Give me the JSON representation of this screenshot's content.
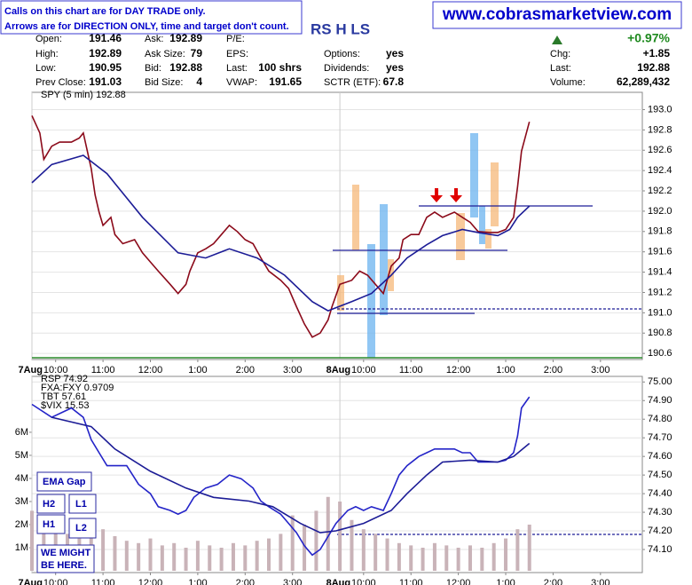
{
  "header": {
    "notes": [
      "Calls on this chart are for DAY TRADE only.",
      "Arrows are for DIRECTION ONLY, time and target don't count."
    ],
    "site": "www.cobrasmarketview.com",
    "symbol": "RS H LS",
    "change_pct": "+0.97%",
    "quote": [
      [
        {
          "label": "Open:",
          "value": "191.46"
        },
        {
          "label": "High:",
          "value": "192.89"
        },
        {
          "label": "Low:",
          "value": "190.95"
        },
        {
          "label": "Prev Close:",
          "value": "191.03"
        }
      ],
      [
        {
          "label": "Ask:",
          "value": "192.89"
        },
        {
          "label": "Ask Size:",
          "value": "79"
        },
        {
          "label": "Bid:",
          "value": "192.88"
        },
        {
          "label": "Bid Size:",
          "value": "4"
        }
      ],
      [
        {
          "label": "P/E:"
        },
        {
          "label": "EPS:"
        },
        {
          "label": "Last:",
          "value": "100 shrs"
        },
        {
          "label": "VWAP:",
          "value": "191.65"
        }
      ],
      [
        {
          "label": "Options:",
          "value": "yes"
        },
        {
          "label": "Dividends:",
          "value": "yes"
        },
        {
          "label": "SCTR (ETF):",
          "value": "67.8"
        }
      ],
      [
        {
          "label": "Chg:",
          "value": "+1.85"
        },
        {
          "label": "Last:",
          "value": "192.88"
        },
        {
          "label": "Volume:",
          "value": "62,289,432"
        }
      ]
    ]
  },
  "annotations": {
    "boxes": [
      [
        "EMA Gap"
      ],
      [
        "H2"
      ],
      [
        "L1"
      ],
      [
        "H1"
      ],
      [
        "L2"
      ],
      [
        "WE MIGHT",
        "BE HERE."
      ]
    ]
  },
  "chart_data": [
    {
      "type": "line",
      "title": "SPY (5 min) 192.88",
      "grid": true,
      "xlim": [
        0,
        154.6
      ],
      "ylim": [
        190.54,
        193.17
      ],
      "xdayticks": [
        {
          "value": 0,
          "label": "7Aug"
        },
        {
          "value": 78,
          "label": "8Aug"
        }
      ],
      "xticks": [
        {
          "value": 6,
          "label": "10:00"
        },
        {
          "value": 18,
          "label": "11:00"
        },
        {
          "value": 30,
          "label": "12:00"
        },
        {
          "value": 42,
          "label": "1:00"
        },
        {
          "value": 54,
          "label": "2:00"
        },
        {
          "value": 66,
          "label": "3:00"
        },
        {
          "value": 84,
          "label": "10:00"
        },
        {
          "value": 96,
          "label": "11:00"
        },
        {
          "value": 108,
          "label": "12:00"
        },
        {
          "value": 120,
          "label": "1:00"
        },
        {
          "value": 132,
          "label": "2:00"
        },
        {
          "value": 144,
          "label": "3:00"
        }
      ],
      "yticks": [
        {
          "value": 193,
          "label": "193.0"
        },
        192.8,
        192.6,
        192.4,
        192.2,
        {
          "value": 192,
          "label": "192.0"
        },
        191.8,
        191.6,
        191.4,
        191.2,
        {
          "value": 191,
          "label": "191.0"
        },
        190.8,
        190.6
      ],
      "series": [
        {
          "color": "#8b0a1a",
          "x": [
            0,
            2,
            3,
            5,
            7,
            10,
            12,
            13,
            15,
            16,
            17,
            18,
            20,
            21,
            23,
            26,
            28,
            30,
            32,
            35,
            37,
            39,
            40,
            42,
            44,
            46,
            48,
            50,
            52,
            54,
            56,
            58,
            60,
            63,
            65,
            67,
            69,
            71,
            73,
            75,
            76,
            78,
            81,
            83,
            85,
            87,
            89,
            91,
            93,
            94,
            96,
            98,
            100,
            102,
            104,
            107,
            109,
            111,
            113,
            116,
            118,
            120,
            122,
            123,
            124,
            126
          ],
          "values": [
            192.94,
            192.77,
            192.51,
            192.64,
            192.68,
            192.68,
            192.72,
            192.77,
            192.42,
            192.16,
            191.99,
            191.86,
            191.94,
            191.77,
            191.68,
            191.72,
            191.59,
            191.5,
            191.41,
            191.28,
            191.19,
            191.28,
            191.41,
            191.59,
            191.63,
            191.68,
            191.77,
            191.86,
            191.8,
            191.72,
            191.68,
            191.54,
            191.41,
            191.32,
            191.24,
            191.06,
            190.89,
            190.76,
            190.8,
            190.93,
            191.06,
            191.28,
            191.32,
            191.41,
            191.37,
            191.28,
            191.19,
            191.46,
            191.54,
            191.72,
            191.77,
            191.77,
            191.94,
            191.99,
            191.94,
            191.99,
            191.94,
            191.89,
            191.8,
            191.79,
            191.79,
            191.82,
            191.94,
            192.24,
            192.59,
            192.88
          ]
        },
        {
          "color": "#1c1c96",
          "x": [
            0,
            5,
            13,
            19,
            28,
            37,
            44,
            50,
            57,
            64,
            71,
            75,
            81,
            86,
            91,
            95,
            100,
            104,
            109,
            113,
            118,
            121,
            123,
            126
          ],
          "values": [
            192.28,
            192.46,
            192.55,
            192.37,
            191.94,
            191.59,
            191.54,
            191.63,
            191.54,
            191.37,
            191.11,
            191.02,
            191.11,
            191.19,
            191.37,
            191.54,
            191.67,
            191.76,
            191.82,
            191.79,
            191.76,
            191.82,
            191.94,
            192.05
          ]
        }
      ]
    },
    {
      "type": "line",
      "title": "RSP 74.92",
      "grid": true,
      "legend": [
        {
          "text": "FXA:FXY 0.9709",
          "color": "#1f8a1f"
        },
        {
          "text": "TBT 57.61",
          "color": "#d0209a"
        },
        {
          "text": "$VIX 15.53",
          "color": "#8a2be2"
        }
      ],
      "xlim": [
        0,
        154.6
      ],
      "ylim": [
        73.976,
        75.03
      ],
      "y2lim": [
        -77000,
        8420000
      ],
      "xdayticks": [
        {
          "value": 0,
          "label": "7Aug"
        },
        {
          "value": 78,
          "label": "8Aug"
        }
      ],
      "xticks": [
        {
          "value": 6,
          "label": "10:00"
        },
        {
          "value": 18,
          "label": "11:00"
        },
        {
          "value": 30,
          "label": "12:00"
        },
        {
          "value": 42,
          "label": "1:00"
        },
        {
          "value": 54,
          "label": "2:00"
        },
        {
          "value": 66,
          "label": "3:00"
        },
        {
          "value": 84,
          "label": "10:00"
        },
        {
          "value": 96,
          "label": "11:00"
        },
        {
          "value": 108,
          "label": "12:00"
        },
        {
          "value": 120,
          "label": "1:00"
        },
        {
          "value": 132,
          "label": "2:00"
        },
        {
          "value": 144,
          "label": "3:00"
        }
      ],
      "yticks": [
        {
          "value": 75,
          "label": "75.00"
        },
        {
          "value": 74.9,
          "label": "74.90"
        },
        {
          "value": 74.8,
          "label": "74.80"
        },
        {
          "value": 74.7,
          "label": "74.70"
        },
        {
          "value": 74.6,
          "label": "74.60"
        },
        {
          "value": 74.5,
          "label": "74.50"
        },
        {
          "value": 74.4,
          "label": "74.40"
        },
        {
          "value": 74.3,
          "label": "74.30"
        },
        {
          "value": 74.2,
          "label": "74.20"
        },
        {
          "value": 74.1,
          "label": "74.10"
        }
      ],
      "y2ticks": [
        {
          "value": 6000000,
          "label": "6M"
        },
        {
          "value": 5000000,
          "label": "5M"
        },
        {
          "value": 4000000,
          "label": "4M"
        },
        {
          "value": 3000000,
          "label": "3M"
        },
        {
          "value": 2000000,
          "label": "2M"
        },
        {
          "value": 1000000,
          "label": "1M"
        }
      ],
      "series": [
        {
          "type": "bar",
          "axis": "y2",
          "color": "#c9b3b8",
          "x": [
            0,
            3,
            6,
            9,
            12,
            15,
            18,
            21,
            24,
            27,
            30,
            33,
            36,
            39,
            42,
            45,
            48,
            51,
            54,
            57,
            60,
            63,
            66,
            69,
            72,
            75,
            78,
            81,
            84,
            87,
            90,
            93,
            96,
            99,
            102,
            105,
            108,
            111,
            114,
            117,
            120,
            123,
            126
          ],
          "values": [
            2600000,
            2000000,
            2200000,
            1600000,
            1400000,
            2000000,
            1800000,
            1500000,
            1300000,
            1200000,
            1400000,
            1100000,
            1200000,
            1000000,
            1300000,
            1100000,
            1000000,
            1200000,
            1100000,
            1300000,
            1400000,
            1600000,
            2400000,
            2000000,
            2600000,
            3200000,
            3000000,
            2200000,
            1800000,
            1600000,
            1400000,
            1200000,
            1100000,
            1000000,
            1200000,
            1100000,
            1000000,
            1100000,
            1000000,
            1200000,
            1400000,
            1800000,
            2000000
          ]
        },
        {
          "color": "#2424c8",
          "x": [
            0,
            5,
            10,
            13,
            15,
            17,
            19,
            21,
            24,
            27,
            30,
            32,
            35,
            37,
            39,
            41,
            44,
            47,
            50,
            53,
            56,
            58,
            60,
            63,
            65,
            67,
            69,
            71,
            73,
            75,
            77,
            80,
            82,
            84,
            86,
            89,
            91,
            93,
            95,
            98,
            100,
            102,
            104,
            107,
            109,
            111,
            113,
            116,
            118,
            120,
            122,
            123,
            124,
            126
          ],
          "values": [
            74.88,
            74.81,
            74.86,
            74.81,
            74.69,
            74.62,
            74.55,
            74.55,
            74.55,
            74.45,
            74.4,
            74.33,
            74.31,
            74.29,
            74.31,
            74.38,
            74.43,
            74.45,
            74.5,
            74.48,
            74.43,
            74.36,
            74.33,
            74.29,
            74.24,
            74.19,
            74.12,
            74.07,
            74.1,
            74.17,
            74.24,
            74.31,
            74.33,
            74.31,
            74.33,
            74.31,
            74.4,
            74.5,
            74.55,
            74.6,
            74.62,
            74.64,
            74.64,
            74.64,
            74.62,
            74.62,
            74.57,
            74.57,
            74.57,
            74.58,
            74.62,
            74.71,
            74.86,
            74.92
          ]
        },
        {
          "color": "#1c1c96",
          "x": [
            5,
            15,
            21,
            30,
            39,
            46,
            55,
            61,
            68,
            73,
            77,
            84,
            91,
            95,
            100,
            104,
            111,
            118,
            122,
            126
          ],
          "values": [
            74.81,
            74.76,
            74.64,
            74.52,
            74.43,
            74.38,
            74.36,
            74.33,
            74.24,
            74.19,
            74.2,
            74.24,
            74.31,
            74.4,
            74.5,
            74.57,
            74.58,
            74.57,
            74.6,
            74.67
          ]
        }
      ]
    }
  ]
}
